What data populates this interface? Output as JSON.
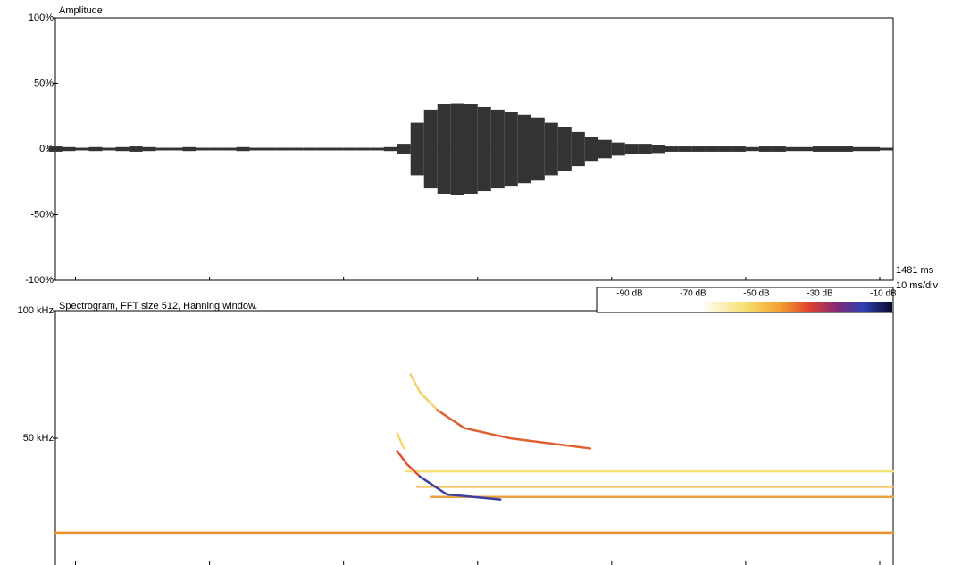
{
  "chart_data": [
    {
      "type": "waveform",
      "title": "Amplitude",
      "color": "#333333",
      "x": [
        0,
        1,
        2,
        3,
        4,
        5,
        6,
        7,
        8,
        9,
        10,
        11,
        12,
        13,
        14,
        15,
        16,
        17,
        18,
        19,
        20,
        21,
        22,
        23,
        24,
        25,
        26,
        27,
        28,
        29,
        30,
        31,
        32,
        33,
        34,
        35,
        36,
        37,
        38,
        39,
        40,
        41,
        42,
        43,
        44,
        45,
        46,
        47,
        48,
        49,
        50,
        51,
        52,
        53,
        54,
        55,
        56,
        57,
        58,
        59,
        60,
        61,
        62
      ],
      "values": [
        2,
        1.5,
        1,
        1.5,
        1,
        1.5,
        2,
        1.5,
        1,
        1,
        1.5,
        1,
        1,
        1,
        1.5,
        1,
        1,
        1,
        1,
        1,
        1,
        1,
        1,
        1,
        1,
        1.5,
        4,
        20,
        30,
        34,
        35,
        34,
        32,
        30,
        28,
        26,
        24,
        20,
        17,
        13,
        9,
        7,
        5,
        4,
        4,
        3,
        2,
        2,
        2,
        2,
        2,
        2,
        1.5,
        2,
        2,
        1.5,
        1.5,
        2,
        2,
        2,
        1.5,
        1.5,
        1
      ],
      "xlim": [
        0,
        62.5
      ],
      "xticks": [
        1.5,
        11.5,
        21.5,
        31.5,
        41.5,
        51.5,
        61.5
      ],
      "ylim": [
        -100,
        100
      ],
      "yticks": [
        {
          "value": 100,
          "label": "100%"
        },
        {
          "value": 50,
          "label": "50%"
        },
        {
          "value": 0,
          "label": "0%"
        },
        {
          "value": -50,
          "label": "-50%"
        },
        {
          "value": -100,
          "label": "-100%"
        }
      ],
      "annotations": [
        "1481 ms",
        "10 ms/div"
      ]
    },
    {
      "type": "spectrogram",
      "title": "Spectrogram, FFT size 512, Hanning window.",
      "xlim": [
        0,
        62.5
      ],
      "xticks": [
        1.5,
        11.5,
        21.5,
        31.5,
        41.5,
        51.5,
        61.5
      ],
      "ylim": [
        0,
        100
      ],
      "yticks": [
        {
          "value": 100,
          "label": "100 kHz"
        },
        {
          "value": 50,
          "label": "50 kHz"
        }
      ],
      "traces": [
        {
          "color": "#f7e07a",
          "x": [
            26.2,
            62.5
          ],
          "y": [
            37,
            37
          ]
        },
        {
          "color": "#f5c060",
          "x": [
            27,
            62.5
          ],
          "y": [
            31,
            31
          ]
        },
        {
          "color": "#e8a040",
          "x": [
            28,
            62.5
          ],
          "y": [
            27,
            27
          ]
        },
        {
          "color": "#e8902a",
          "x": [
            0,
            62.5
          ],
          "y": [
            13,
            13
          ]
        },
        {
          "color": "#f5d070",
          "x": [
            26.5,
            27.2,
            28.5
          ],
          "y": [
            75,
            68,
            61
          ]
        },
        {
          "color": "#e06030",
          "x": [
            28.5,
            30.5,
            33.9,
            39.9
          ],
          "y": [
            61,
            54,
            50,
            46
          ]
        },
        {
          "color": "#f7d870",
          "x": [
            25.5,
            26
          ],
          "y": [
            52,
            46
          ]
        },
        {
          "color": "#e05030",
          "x": [
            25.5,
            26.2,
            27.2
          ],
          "y": [
            45,
            40,
            35
          ]
        },
        {
          "color": "#3a3fa0",
          "x": [
            27.2,
            29.2,
            33.2
          ],
          "y": [
            35,
            28,
            26
          ]
        }
      ],
      "colorbar": {
        "ticks": [
          "-90 dB",
          "-70 dB",
          "-50 dB",
          "-30 dB",
          "-10 dB"
        ]
      }
    }
  ]
}
